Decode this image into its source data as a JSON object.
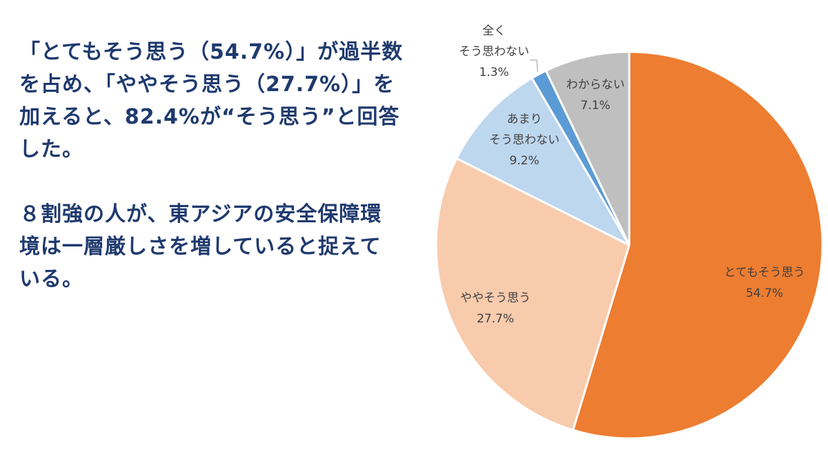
{
  "description": {
    "paragraph1": [
      "「とてもそう思う（54.7%）」が過半数",
      "を占め、「ややそう思う（27.7%）」を",
      "加えると、82.4%が“そう思う”と回答",
      "した。"
    ],
    "paragraph2": [
      "８割強の人が、東アジアの安全保障環",
      "境は一層厳しさを増していると捉えて",
      "いる。"
    ]
  },
  "chart_data": {
    "type": "pie",
    "start_angle_deg": 0,
    "direction": "clockwise",
    "slices": [
      {
        "label_lines": [
          "とてもそう思う"
        ],
        "value": 54.7,
        "value_text": "54.7%",
        "color": "#ed7d31"
      },
      {
        "label_lines": [
          "ややそう思う"
        ],
        "value": 27.7,
        "value_text": "27.7%",
        "color": "#f8cbad"
      },
      {
        "label_lines": [
          "あまり",
          "そう思わない"
        ],
        "value": 9.2,
        "value_text": "9.2%",
        "color": "#bdd7ee"
      },
      {
        "label_lines": [
          "全く",
          "そう思わない"
        ],
        "value": 1.3,
        "value_text": "1.3%",
        "color": "#5b9bd5"
      },
      {
        "label_lines": [
          "わからない"
        ],
        "value": 7.1,
        "value_text": "7.1%",
        "color": "#bfbfbf"
      }
    ]
  }
}
